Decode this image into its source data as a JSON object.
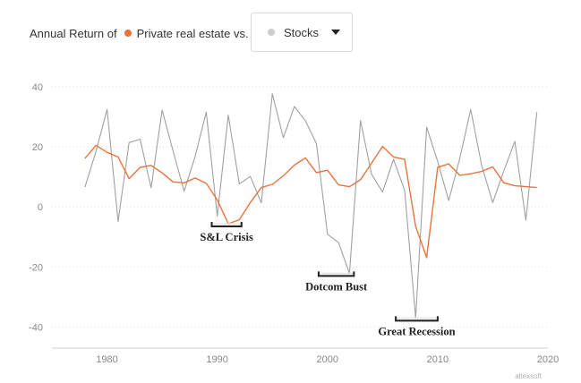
{
  "header": {
    "prefix": "Annual Return of",
    "series_label": "Private real estate vs."
  },
  "dropdown": {
    "selected": "Stocks",
    "icon": "chevron-down-icon"
  },
  "watermark": "altexsoft",
  "colors": {
    "real_estate": "#e8743b",
    "stocks": "#a0a0a0",
    "stocks_dot": "#cccccc",
    "grid": "#dddddd",
    "annotation": "#222222"
  },
  "chart_data": {
    "type": "line",
    "title": "",
    "xlabel": "",
    "ylabel": "",
    "xlim": [
      1975,
      2020
    ],
    "ylim": [
      -47,
      45
    ],
    "x_ticks": [
      1980,
      1990,
      2000,
      2010,
      2020
    ],
    "y_ticks": [
      40,
      20,
      0,
      -20,
      -40
    ],
    "grid": "horizontal dotted",
    "legend": "top (header)",
    "series": [
      {
        "name": "Private real estate",
        "color": "#e8743b",
        "x": [
          1978,
          1979,
          1980,
          1981,
          1982,
          1983,
          1984,
          1985,
          1986,
          1987,
          1988,
          1989,
          1990,
          1991,
          1992,
          1993,
          1994,
          1995,
          1996,
          1997,
          1998,
          1999,
          2000,
          2001,
          2002,
          2003,
          2004,
          2005,
          2006,
          2007,
          2008,
          2009,
          2010,
          2011,
          2012,
          2013,
          2014,
          2015,
          2016,
          2017,
          2018,
          2019
        ],
        "y": [
          16.1,
          20.5,
          18.1,
          16.6,
          9.4,
          13.1,
          13.8,
          11.3,
          8.3,
          8.0,
          9.6,
          7.8,
          2.3,
          -5.6,
          -4.3,
          1.4,
          6.4,
          7.5,
          10.3,
          13.9,
          16.3,
          11.4,
          12.2,
          7.3,
          6.7,
          9.0,
          14.5,
          20.1,
          16.6,
          15.8,
          -6.5,
          -16.9,
          13.1,
          14.3,
          10.5,
          11.0,
          11.8,
          13.3,
          8.0,
          7.0,
          6.7,
          6.4
        ]
      },
      {
        "name": "Stocks",
        "color": "#a0a0a0",
        "x": [
          1978,
          1979,
          1980,
          1981,
          1982,
          1983,
          1984,
          1985,
          1986,
          1987,
          1988,
          1989,
          1990,
          1991,
          1992,
          1993,
          1994,
          1995,
          1996,
          1997,
          1998,
          1999,
          2000,
          2001,
          2002,
          2003,
          2004,
          2005,
          2006,
          2007,
          2008,
          2009,
          2010,
          2011,
          2012,
          2013,
          2014,
          2015,
          2016,
          2017,
          2018,
          2019
        ],
        "y": [
          6.6,
          18.4,
          32.4,
          -4.9,
          21.4,
          22.5,
          6.3,
          32.2,
          18.5,
          5.2,
          16.8,
          31.5,
          -3.1,
          30.5,
          7.6,
          10.1,
          1.3,
          37.6,
          23.0,
          33.4,
          28.6,
          21.0,
          -9.1,
          -11.9,
          -22.1,
          28.7,
          10.9,
          4.9,
          15.8,
          5.5,
          -37.0,
          26.5,
          15.1,
          2.1,
          16.0,
          32.4,
          13.7,
          1.4,
          12.0,
          21.8,
          -4.4,
          31.5
        ]
      }
    ],
    "annotations": [
      {
        "label": "S&L Crisis",
        "x_start": 1989.5,
        "x_end": 1992.2,
        "y": -5.6
      },
      {
        "label": "Dotcom Bust",
        "x_start": 1999.2,
        "x_end": 2002.4,
        "y": -22.1
      },
      {
        "label": "Great Recession",
        "x_start": 2006.2,
        "x_end": 2010.0,
        "y": -37.0
      }
    ]
  }
}
